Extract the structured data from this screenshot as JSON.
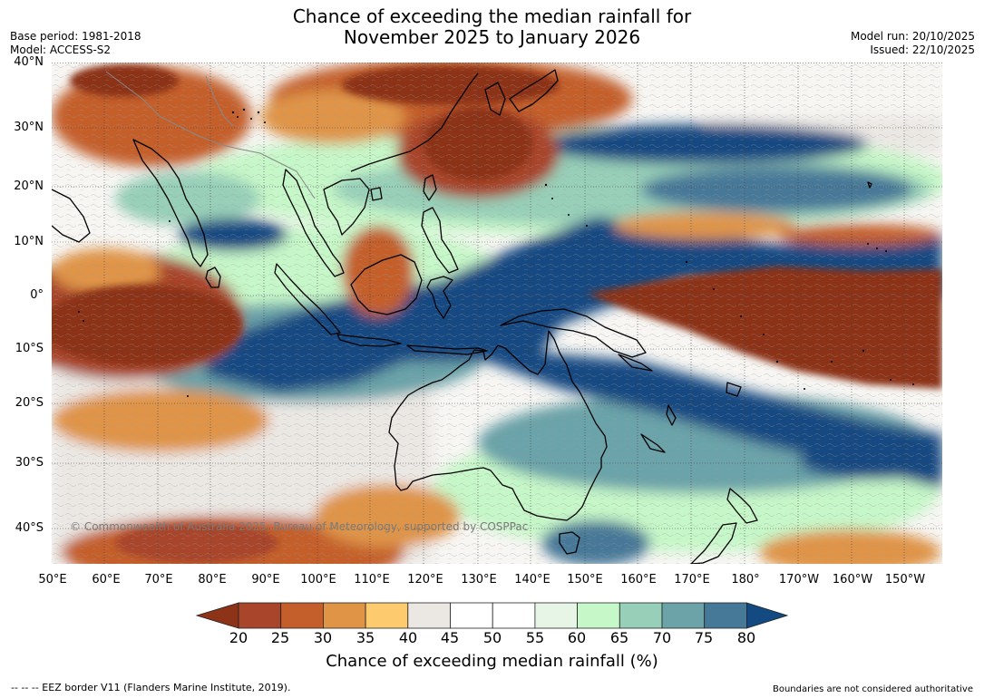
{
  "title": {
    "line1": "Chance of exceeding the median rainfall for",
    "line2": "November 2025 to January 2026"
  },
  "meta_left": {
    "base_period": "Base period: 1981-2018",
    "model": "Model: ACCESS-S2"
  },
  "meta_right": {
    "model_run": "Model run: 20/10/2025",
    "issued": "Issued: 22/10/2025"
  },
  "map": {
    "copyright": "© Commonwealth of Australia 2025, Bureau of Meteorology, supported by COSPPac",
    "lat_labels": [
      "40°N",
      "30°N",
      "20°N",
      "10°N",
      "0°",
      "10°S",
      "20°S",
      "30°S",
      "40°S"
    ],
    "lon_labels": [
      "50°E",
      "60°E",
      "70°E",
      "80°E",
      "90°E",
      "100°E",
      "110°E",
      "120°E",
      "130°E",
      "140°E",
      "150°E",
      "160°E",
      "170°E",
      "180°",
      "170°W",
      "160°W",
      "150°W"
    ],
    "land_outline_color": "#000000"
  },
  "colorbar": {
    "ticks": [
      "20",
      "25",
      "30",
      "35",
      "40",
      "45",
      "50",
      "55",
      "60",
      "65",
      "70",
      "75",
      "80"
    ],
    "colors": [
      "#8c3318",
      "#a8452a",
      "#c45f2c",
      "#e09446",
      "#fdcb6e",
      "#ebe8e4",
      "#ffffff",
      "#ffffff",
      "#e6f5e6",
      "#c6f7c8",
      "#97cfb8",
      "#6ba3a9",
      "#467898",
      "#134a82"
    ],
    "label": "Chance of exceeding median rainfall (%)"
  },
  "footer": {
    "eez": "--  --  -- EEZ border V11 (Flanders Marine Institute, 2019).",
    "disclaimer": "Boundaries are not considered authoritative"
  }
}
